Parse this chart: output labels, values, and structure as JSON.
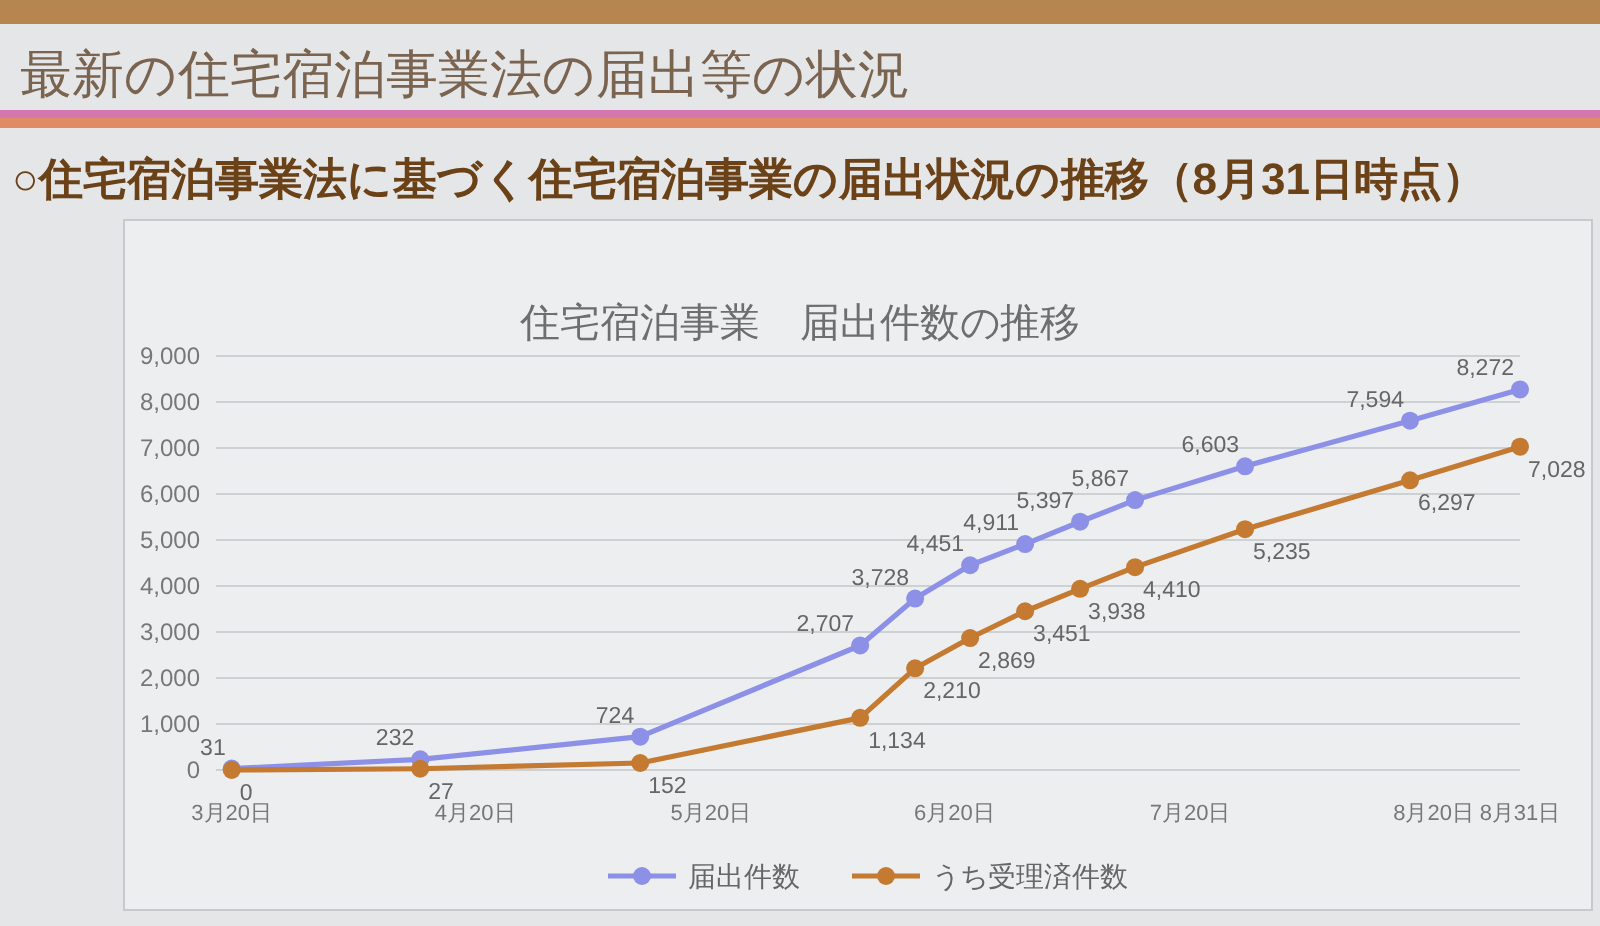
{
  "chart_data": {
    "type": "line",
    "title": "最新の住宅宿泊事業法の届出等の状況",
    "subtitle": "○住宅宿泊事業法に基づく住宅宿泊事業の届出状況の推移（8月31日時点）",
    "annotations": [
      "住宅宿泊事業　届出件数の推移"
    ],
    "x": [
      "--03-20",
      "--04-13",
      "--05-11",
      "--06-08",
      "--06-15",
      "--06-22",
      "--06-29",
      "--07-06",
      "--07-13",
      "--07-27",
      "--08-17",
      "--08-31"
    ],
    "series": [
      {
        "name": "届出件数",
        "color": "#8c90e6",
        "values": [
          31,
          232,
          724,
          2707,
          3728,
          4451,
          4911,
          5397,
          5867,
          6603,
          7594,
          8272
        ],
        "value_labels": [
          "31",
          "232",
          "724",
          "2,707",
          "3,728",
          "4,451",
          "4,911",
          "5,397",
          "5,867",
          "6,603",
          "7,594",
          "8,272"
        ]
      },
      {
        "name": "うち受理済件数",
        "color": "#c47a30",
        "values": [
          0,
          27,
          152,
          1134,
          2210,
          2869,
          3451,
          3938,
          4410,
          5235,
          6297,
          7028
        ],
        "value_labels": [
          "0",
          "27",
          "152",
          "1,134",
          "2,210",
          "2,869",
          "3,451",
          "3,938",
          "4,410",
          "5,235",
          "6,297",
          "7,028"
        ]
      }
    ],
    "xlim": [
      "--03-18",
      "--08-31"
    ],
    "xticks": [
      {
        "value": "--03-20",
        "label": "3月20日"
      },
      {
        "value": "--04-20",
        "label": "4月20日"
      },
      {
        "value": "--05-20",
        "label": "5月20日"
      },
      {
        "value": "--06-20",
        "label": "6月20日"
      },
      {
        "value": "--07-20",
        "label": "7月20日"
      },
      {
        "value": "--08-20",
        "label": "8月20日"
      },
      {
        "value": "--08-31",
        "label": "8月31日"
      }
    ],
    "ylim": [
      0,
      9000
    ],
    "yticks": [
      0,
      {
        "value": 1000,
        "label": "1,000"
      },
      {
        "value": 2000,
        "label": "2,000"
      },
      {
        "value": 3000,
        "label": "3,000"
      },
      {
        "value": 4000,
        "label": "4,000"
      },
      {
        "value": 5000,
        "label": "5,000"
      },
      {
        "value": 6000,
        "label": "6,000"
      },
      {
        "value": 7000,
        "label": "7,000"
      },
      {
        "value": 8000,
        "label": "8,000"
      },
      {
        "value": 9000,
        "label": "9,000"
      }
    ],
    "grid": "y",
    "legend": "bottom",
    "marker": "circle",
    "line_style": "solid"
  }
}
